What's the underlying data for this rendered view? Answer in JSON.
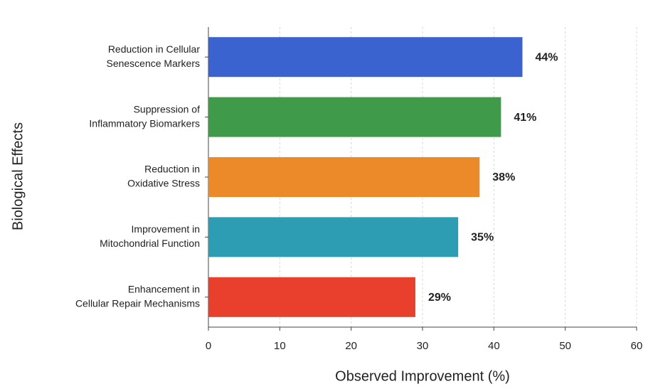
{
  "chart_data": {
    "type": "barh",
    "xlabel": "Observed Improvement (%)",
    "ylabel": "Biological Effects",
    "categories": [
      [
        "Reduction in Cellular",
        "Senescence Markers"
      ],
      [
        "Suppression of",
        "Inflammatory Biomarkers"
      ],
      [
        "Reduction in",
        "Oxidative Stress"
      ],
      [
        "Improvement in",
        "Mitochondrial Function"
      ],
      [
        "Enhancement in",
        "Cellular Repair Mechanisms"
      ]
    ],
    "values": [
      44,
      41,
      38,
      35,
      29
    ],
    "value_labels": [
      "44%",
      "41%",
      "38%",
      "35%",
      "29%"
    ],
    "colors": [
      "#3b63cf",
      "#3f9a4a",
      "#ec8a2a",
      "#2c9db3",
      "#e8402d"
    ],
    "xlim": [
      0,
      60
    ],
    "xticks": [
      0,
      10,
      20,
      30,
      40,
      50,
      60
    ],
    "grid": true
  }
}
